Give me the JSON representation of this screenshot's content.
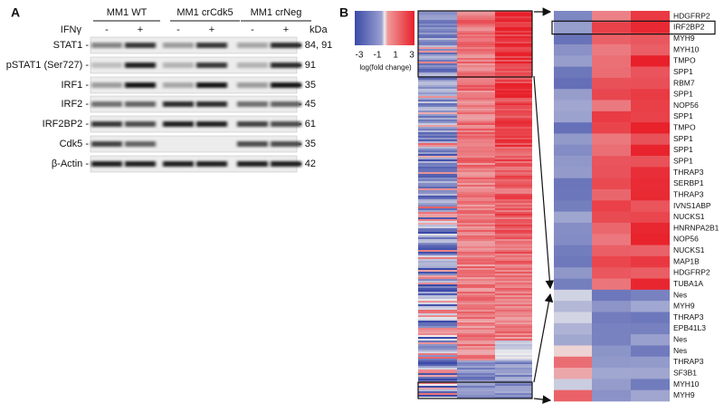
{
  "panel_a": {
    "label": "A",
    "groups": [
      "MM1 WT",
      "MM1 crCdk5",
      "MM1 crNeg"
    ],
    "treatment_label": "IFNγ",
    "treatments": [
      "-",
      "+",
      "-",
      "+",
      "-",
      "+"
    ],
    "unit": "kDa",
    "rows": [
      {
        "name": "STAT1 -",
        "size": "- 84, 91"
      },
      {
        "name": "pSTAT1 (Ser727) -",
        "size": "- 91"
      },
      {
        "name": "IRF1 -",
        "size": "- 35"
      },
      {
        "name": "IRF2 -",
        "size": "- 45"
      },
      {
        "name": "IRF2BP2 -",
        "size": "- 61"
      },
      {
        "name": "Cdk5 -",
        "size": "- 35"
      },
      {
        "name": "β-Actin -",
        "size": "- 42"
      }
    ]
  },
  "panel_b": {
    "label": "B",
    "colorbar": {
      "ticks": [
        "-3",
        "-1",
        "1",
        "3"
      ],
      "label": "log(fold change)"
    },
    "genes": [
      "HDGFRP2",
      "IRF2BP2",
      "MYH9",
      "MYH10",
      "TMPO",
      "SPP1",
      "RBM7",
      "SPP1",
      "NOP56",
      "SPP1",
      "TMPO",
      "SPP1",
      "SPP1",
      "SPP1",
      "THRAP3",
      "SERBP1",
      "THRAP3",
      "IVNS1ABP",
      "NUCKS1",
      "HNRNPA2B1",
      "NOP56",
      "NUCKS1",
      "MAP1B",
      "HDGFRP2",
      "TUBA1A",
      "Nes",
      "MYH9",
      "THRAP3",
      "EPB41L3",
      "Nes",
      "Nes",
      "THRAP3",
      "SF3B1",
      "MYH10",
      "MYH9"
    ]
  }
}
